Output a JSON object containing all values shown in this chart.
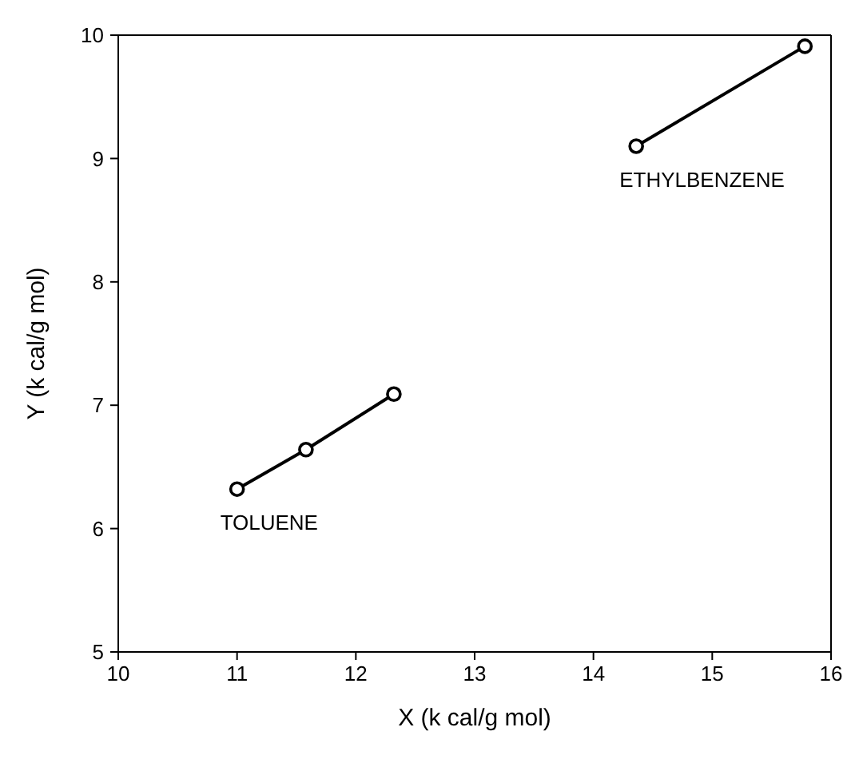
{
  "chart_data": {
    "type": "line",
    "xlabel": "X (k cal/g mol)",
    "ylabel": "Y (k cal/g mol)",
    "xlim": [
      10,
      16
    ],
    "xticks": [
      10,
      11,
      12,
      13,
      14,
      15,
      16
    ],
    "ylim": [
      5,
      10
    ],
    "yticks": [
      5,
      6,
      7,
      8,
      9,
      10
    ],
    "legend": false,
    "marker": "circle",
    "line_style": "solid",
    "series": [
      {
        "name": "TOLUENE",
        "color": "#000000",
        "x": [
          11.0,
          11.58,
          12.32
        ],
        "values": [
          6.32,
          6.64,
          7.09
        ]
      },
      {
        "name": "ETHYLBENZENE",
        "color": "#000000",
        "x": [
          14.36,
          15.78
        ],
        "values": [
          9.1,
          9.91
        ]
      }
    ]
  }
}
